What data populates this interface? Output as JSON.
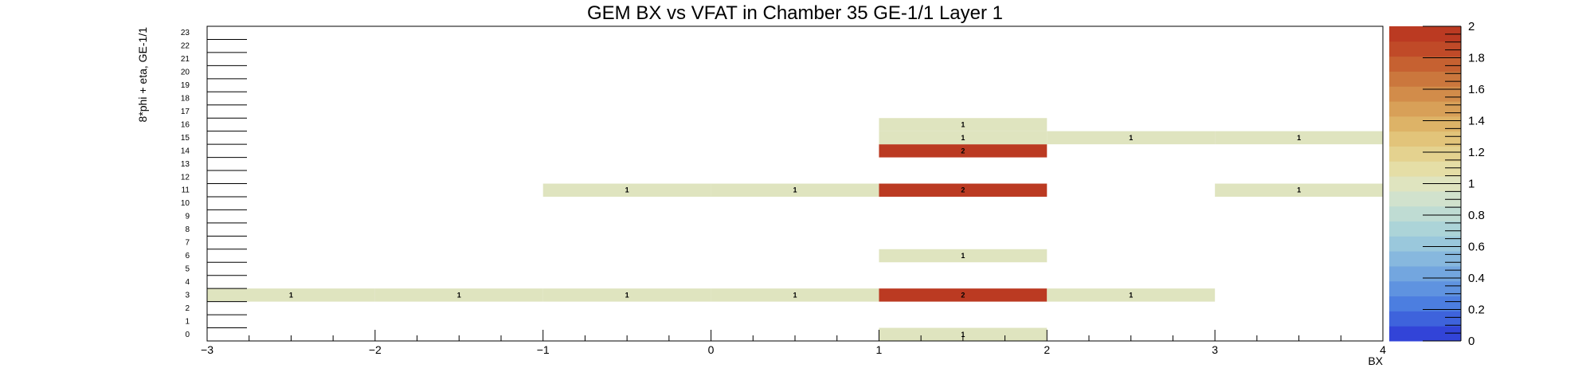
{
  "chart_data": {
    "type": "heatmap",
    "title": "GEM BX vs VFAT in Chamber 35 GE-1/1 Layer 1",
    "xlabel": "BX",
    "ylabel": "8*phi + eta, GE-1/1",
    "xlim": [
      -3,
      4
    ],
    "ylim": [
      0,
      24
    ],
    "zlim": [
      0,
      2
    ],
    "x_ticks": [
      "−3",
      "−2",
      "−1",
      "0",
      "1",
      "2",
      "3",
      "4"
    ],
    "y_ticks": [
      "0",
      "1",
      "2",
      "3",
      "4",
      "5",
      "6",
      "7",
      "8",
      "9",
      "10",
      "11",
      "12",
      "13",
      "14",
      "15",
      "16",
      "17",
      "18",
      "19",
      "20",
      "21",
      "22",
      "23"
    ],
    "z_ticks": [
      "0",
      "0.2",
      "0.4",
      "0.6",
      "0.8",
      "1",
      "1.2",
      "1.4",
      "1.6",
      "1.8",
      "2"
    ],
    "palette": [
      "#3244d8",
      "#3e63dc",
      "#4c7ee0",
      "#5f93e0",
      "#73a6df",
      "#87b8de",
      "#9ac8dc",
      "#acd4d8",
      "#bfdcd3",
      "#d1e2cd",
      "#dfe4bf",
      "#e5dea6",
      "#e4d28f",
      "#e2c47a",
      "#ddb367",
      "#d8a058",
      "#d28c4a",
      "#cb773d",
      "#c66131",
      "#c04a28",
      "#bb3a22"
    ],
    "cells": [
      {
        "x0": 1,
        "x1": 2,
        "y": 0,
        "value": 1
      },
      {
        "x0": -3,
        "x1": -2,
        "y": 3,
        "value": 1
      },
      {
        "x0": -2,
        "x1": -1,
        "y": 3,
        "value": 1
      },
      {
        "x0": -1,
        "x1": 0,
        "y": 3,
        "value": 1
      },
      {
        "x0": 0,
        "x1": 1,
        "y": 3,
        "value": 1
      },
      {
        "x0": 1,
        "x1": 2,
        "y": 3,
        "value": 2
      },
      {
        "x0": 2,
        "x1": 3,
        "y": 3,
        "value": 1
      },
      {
        "x0": 1,
        "x1": 2,
        "y": 6,
        "value": 1
      },
      {
        "x0": -1,
        "x1": 0,
        "y": 11,
        "value": 1
      },
      {
        "x0": 0,
        "x1": 1,
        "y": 11,
        "value": 1
      },
      {
        "x0": 1,
        "x1": 2,
        "y": 11,
        "value": 2
      },
      {
        "x0": 3,
        "x1": 4,
        "y": 11,
        "value": 1
      },
      {
        "x0": 1,
        "x1": 2,
        "y": 14,
        "value": 2
      },
      {
        "x0": 1,
        "x1": 2,
        "y": 15,
        "value": 1
      },
      {
        "x0": 2,
        "x1": 3,
        "y": 15,
        "value": 1
      },
      {
        "x0": 3,
        "x1": 4,
        "y": 15,
        "value": 1
      },
      {
        "x0": 1,
        "x1": 2,
        "y": 16,
        "value": 1
      }
    ]
  }
}
